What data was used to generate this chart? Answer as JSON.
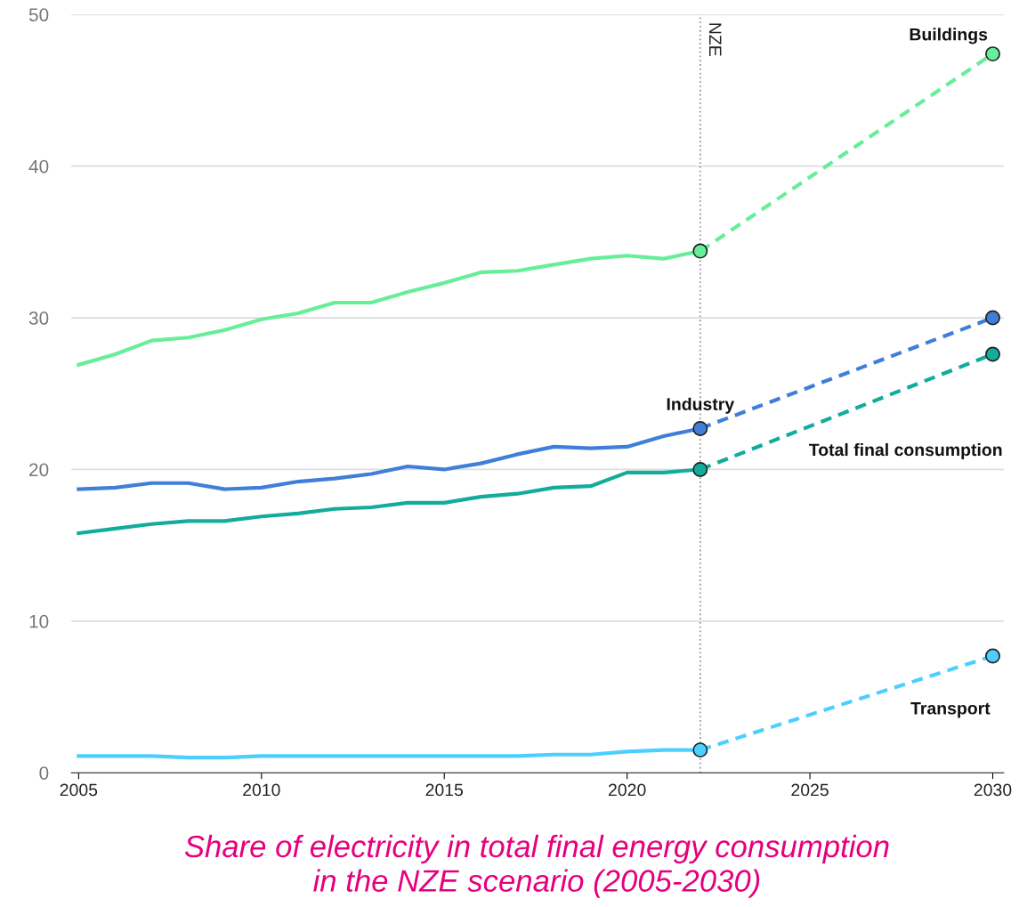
{
  "chart_data": {
    "type": "line",
    "title": "Share of electricity in total final energy consumption\nin the NZE scenario (2005-2030)",
    "xlim": [
      2004.8,
      2030.3
    ],
    "xticks": [
      2005,
      2010,
      2015,
      2020,
      2025,
      2030
    ],
    "ylim": [
      0,
      50
    ],
    "yticks": [
      0,
      10,
      20,
      30,
      40,
      50
    ],
    "grid": "y",
    "legend": false,
    "ref_lines": [
      {
        "axis": "x",
        "value": 2022,
        "label": "NZE",
        "color": "#999999",
        "line_style": "dotted"
      }
    ],
    "series": [
      {
        "color": "#66ee99",
        "line_style": "solid",
        "marker": "none",
        "x": [
          2005,
          2006,
          2007,
          2008,
          2009,
          2010,
          2011,
          2012,
          2013,
          2014,
          2015,
          2016,
          2017,
          2018,
          2019,
          2020,
          2021,
          2022
        ],
        "values": [
          26.9,
          27.6,
          28.5,
          28.7,
          29.2,
          29.9,
          30.3,
          31.0,
          31.0,
          31.7,
          32.3,
          33.0,
          33.1,
          33.5,
          33.9,
          34.1,
          33.9,
          34.4
        ]
      },
      {
        "name": "Buildings",
        "color": "#66ee99",
        "line_style": "dashed",
        "marker": "circle",
        "x": [
          2022,
          2030
        ],
        "values": [
          34.4,
          47.4
        ]
      },
      {
        "name": "Industry",
        "color": "#3f7fd9",
        "line_style": "solid",
        "marker": "none",
        "x": [
          2005,
          2006,
          2007,
          2008,
          2009,
          2010,
          2011,
          2012,
          2013,
          2014,
          2015,
          2016,
          2017,
          2018,
          2019,
          2020,
          2021,
          2022
        ],
        "values": [
          18.7,
          18.8,
          19.1,
          19.1,
          18.7,
          18.8,
          19.2,
          19.4,
          19.7,
          20.2,
          20.0,
          20.4,
          21.0,
          21.5,
          21.4,
          21.5,
          22.2,
          22.7
        ]
      },
      {
        "color": "#3f7fd9",
        "line_style": "dashed",
        "marker": "circle",
        "x": [
          2022,
          2030
        ],
        "values": [
          22.7,
          30.0
        ]
      },
      {
        "color": "#13ab9c",
        "line_style": "solid",
        "marker": "none",
        "x": [
          2005,
          2006,
          2007,
          2008,
          2009,
          2010,
          2011,
          2012,
          2013,
          2014,
          2015,
          2016,
          2017,
          2018,
          2019,
          2020,
          2021,
          2022
        ],
        "values": [
          15.8,
          16.1,
          16.4,
          16.6,
          16.6,
          16.9,
          17.1,
          17.4,
          17.5,
          17.8,
          17.8,
          18.2,
          18.4,
          18.8,
          18.9,
          19.8,
          19.8,
          20.0
        ]
      },
      {
        "name": "Total final consumption",
        "color": "#13ab9c",
        "line_style": "dashed",
        "marker": "circle",
        "x": [
          2022,
          2030
        ],
        "values": [
          20.0,
          27.6
        ]
      },
      {
        "color": "#4ccfff",
        "line_style": "solid",
        "marker": "none",
        "x": [
          2005,
          2006,
          2007,
          2008,
          2009,
          2010,
          2011,
          2012,
          2013,
          2014,
          2015,
          2016,
          2017,
          2018,
          2019,
          2020,
          2021,
          2022
        ],
        "values": [
          1.1,
          1.1,
          1.1,
          1.0,
          1.0,
          1.1,
          1.1,
          1.1,
          1.1,
          1.1,
          1.1,
          1.1,
          1.1,
          1.2,
          1.2,
          1.4,
          1.5,
          1.5
        ]
      },
      {
        "name": "Transport",
        "color": "#4ccfff",
        "line_style": "dashed",
        "marker": "circle",
        "x": [
          2022,
          2030
        ],
        "values": [
          1.5,
          7.7
        ]
      }
    ]
  }
}
